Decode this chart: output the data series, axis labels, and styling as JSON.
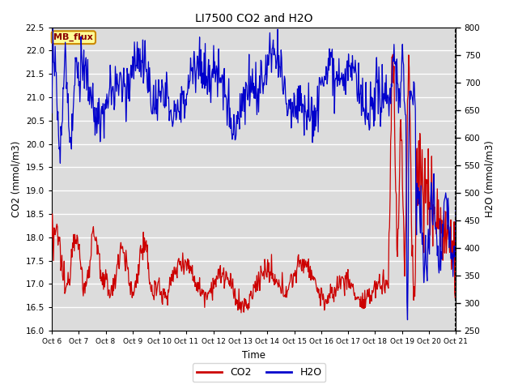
{
  "title": "LI7500 CO2 and H2O",
  "xlabel": "Time",
  "ylabel_left": "CO2 (mmol/m3)",
  "ylabel_right": "H2O (mmol/m3)",
  "ylim_left": [
    16.0,
    22.5
  ],
  "ylim_right": [
    250,
    800
  ],
  "yticks_left": [
    16.0,
    16.5,
    17.0,
    17.5,
    18.0,
    18.5,
    19.0,
    19.5,
    20.0,
    20.5,
    21.0,
    21.5,
    22.0,
    22.5
  ],
  "yticks_right": [
    250,
    300,
    350,
    400,
    450,
    500,
    550,
    600,
    650,
    700,
    750,
    800
  ],
  "xtick_labels": [
    "Oct 6",
    "Oct 7",
    "Oct 8",
    "Oct 9",
    "Oct 10Oct 11Oct 12Oct 13Oct 14Oct 15Oct 16Oct 17Oct 18Oct 19Oct 20Oct 21"
  ],
  "xtick_labels_full": [
    "Oct 6",
    "Oct 7",
    "Oct 8",
    "Oct 9",
    "Oct 10",
    "Oct 11",
    "Oct 12",
    "Oct 13",
    "Oct 14",
    "Oct 15",
    "Oct 16",
    "Oct 17",
    "Oct 18",
    "Oct 19",
    "Oct 20",
    "Oct 21"
  ],
  "co2_color": "#CC0000",
  "h2o_color": "#0000CC",
  "axes_bg_color": "#DCDCDC",
  "annotation_text": "MB_flux",
  "annotation_bg": "#FFFF99",
  "annotation_border": "#CC8800",
  "legend_co2": "CO2",
  "legend_h2o": "H2O",
  "n_days": 15,
  "pts_per_day": 48
}
